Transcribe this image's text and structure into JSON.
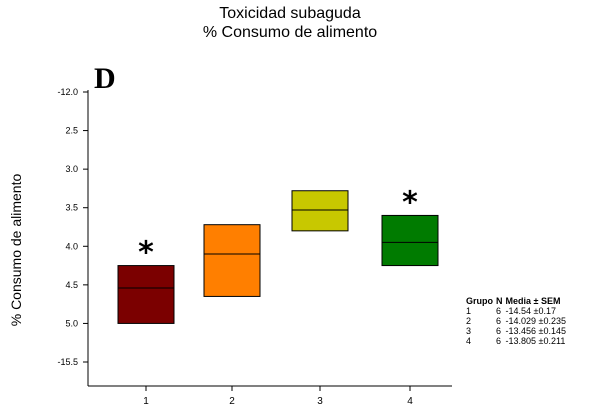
{
  "title_line1": "Toxicidad subaguda",
  "title_line2": "% Consumo de alimento",
  "panel_letter": "D",
  "chart_data": {
    "type": "box",
    "ylabel": "% Consumo de alimento",
    "y_ticks": [
      "-12.0",
      "2.5",
      "3.0",
      "3.5",
      "4.0",
      "4.5",
      "5.0",
      "-15.5"
    ],
    "y_range": [
      -12.0,
      -15.5
    ],
    "categories": [
      "1",
      "2",
      "3",
      "4"
    ],
    "boxes": [
      {
        "group": "1",
        "q1": -15.0,
        "median": -14.54,
        "q3": -14.25,
        "color": "#7b0000",
        "significant": true
      },
      {
        "group": "2",
        "q1": -14.65,
        "median": -14.1,
        "q3": -13.72,
        "color": "#ff7f00",
        "significant": false
      },
      {
        "group": "3",
        "q1": -13.8,
        "median": -13.53,
        "q3": -13.28,
        "color": "#c8c800",
        "significant": false
      },
      {
        "group": "4",
        "q1": -14.25,
        "median": -13.95,
        "q3": -13.6,
        "color": "#007b00",
        "significant": true
      }
    ],
    "significance_marker": "*"
  },
  "legend": {
    "headers": [
      "Grupo",
      "N",
      "Media ± SEM"
    ],
    "rows": [
      [
        "1",
        "6",
        "-14.54 ±0.17"
      ],
      [
        "2",
        "6",
        "-14.029 ±0.235"
      ],
      [
        "3",
        "6",
        "-13.456 ±0.145"
      ],
      [
        "4",
        "6",
        "-13.805 ±0.211"
      ]
    ]
  }
}
